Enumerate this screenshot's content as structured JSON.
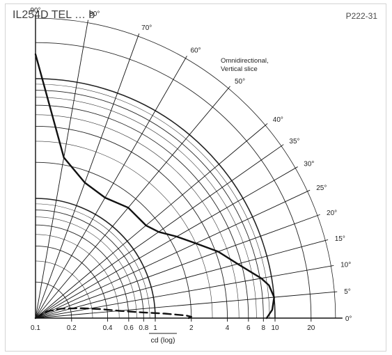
{
  "header": {
    "title": "IL254D TEL … b",
    "code": "P222-31"
  },
  "chart_data": {
    "type": "polar-log",
    "annotation": [
      "Omnidirectional,",
      "Vertical slice"
    ],
    "xlabel": "cd (log)",
    "radial_ticks": [
      {
        "value": 0.1,
        "label": "0.1"
      },
      {
        "value": 0.2,
        "label": "0.2"
      },
      {
        "value": 0.4,
        "label": "0.4"
      },
      {
        "value": 0.6,
        "label": "0.6"
      },
      {
        "value": 0.8,
        "label": "0.8"
      },
      {
        "value": 1,
        "label": "1"
      },
      {
        "value": 2,
        "label": "2"
      },
      {
        "value": 4,
        "label": "4"
      },
      {
        "value": 6,
        "label": "6"
      },
      {
        "value": 8,
        "label": "8"
      },
      {
        "value": 10,
        "label": "10"
      },
      {
        "value": 20,
        "label": "20"
      }
    ],
    "angle_ticks": [
      {
        "angle": 0,
        "label": "0°"
      },
      {
        "angle": 5,
        "label": "5°"
      },
      {
        "angle": 10,
        "label": "10°"
      },
      {
        "angle": 15,
        "label": "15°"
      },
      {
        "angle": 20,
        "label": "20°"
      },
      {
        "angle": 25,
        "label": "25°"
      },
      {
        "angle": 30,
        "label": "30°"
      },
      {
        "angle": 35,
        "label": "35°"
      },
      {
        "angle": 40,
        "label": "40°"
      },
      {
        "angle": 50,
        "label": "50°"
      },
      {
        "angle": 60,
        "label": "60°"
      },
      {
        "angle": 70,
        "label": "70°"
      },
      {
        "angle": 80,
        "label": "80°"
      },
      {
        "angle": 90,
        "label": "90°"
      }
    ],
    "rlim": [
      0.1,
      32
    ],
    "series": [
      {
        "style": "solid",
        "points": [
          {
            "angle": 0,
            "cd": 8.5
          },
          {
            "angle": 2,
            "cd": 9.5
          },
          {
            "angle": 5,
            "cd": 10
          },
          {
            "angle": 8,
            "cd": 9.3
          },
          {
            "angle": 10,
            "cd": 8.2
          },
          {
            "angle": 15,
            "cd": 5.6
          },
          {
            "angle": 20,
            "cd": 4.2
          },
          {
            "angle": 25,
            "cd": 3.0
          },
          {
            "angle": 30,
            "cd": 2.3
          },
          {
            "angle": 35,
            "cd": 1.8
          },
          {
            "angle": 40,
            "cd": 1.6
          },
          {
            "angle": 50,
            "cd": 1.6
          },
          {
            "angle": 60,
            "cd": 1.45
          },
          {
            "angle": 70,
            "cd": 1.6
          },
          {
            "angle": 80,
            "cd": 2.3
          },
          {
            "angle": 90,
            "cd": 16
          }
        ]
      },
      {
        "style": "dashed",
        "points": [
          {
            "angle": 0,
            "cd": 1.9
          },
          {
            "angle": 0.5,
            "cd": 2.0
          },
          {
            "angle": 1,
            "cd": 1.8
          },
          {
            "angle": 2,
            "cd": 1.2
          },
          {
            "angle": 3,
            "cd": 0.8
          },
          {
            "angle": 5,
            "cd": 0.5
          },
          {
            "angle": 8,
            "cd": 0.35
          },
          {
            "angle": 12,
            "cd": 0.25
          },
          {
            "angle": 20,
            "cd": 0.17
          },
          {
            "angle": 30,
            "cd": 0.13
          },
          {
            "angle": 90,
            "cd": 0.1
          }
        ]
      }
    ]
  }
}
